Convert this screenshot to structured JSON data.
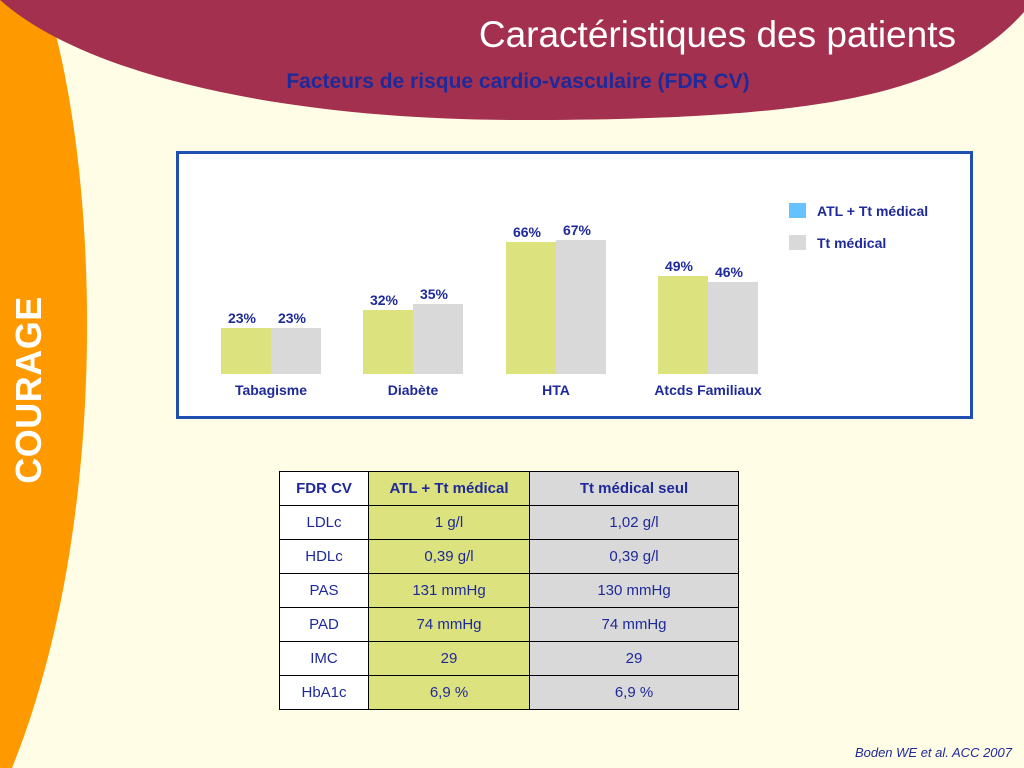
{
  "header": {
    "title": "Caractéristiques des patients",
    "subtitle": "Facteurs de risque cardio-vasculaire (FDR CV)"
  },
  "side_label": "COURAGE",
  "colors": {
    "banner": "#A3304F",
    "sidebar": "#FF9900",
    "background": "#FFFDE5",
    "series1": "#DCE27E",
    "series2": "#D9D9D9",
    "legend1": "#66C2FF",
    "text": "#1F2A9A",
    "border": "#1F4FB0"
  },
  "chart_data": {
    "type": "bar",
    "title": "",
    "xlabel": "",
    "ylabel": "",
    "ylim": [
      0,
      80
    ],
    "grid": false,
    "legend": "right",
    "categories": [
      "Tabagisme",
      "Diabète",
      "HTA",
      "Atcds Familiaux"
    ],
    "series": [
      {
        "name": "ATL + Tt médical",
        "values": [
          23,
          32,
          66,
          49
        ],
        "labels": [
          "23%",
          "32%",
          "66%",
          "49%"
        ]
      },
      {
        "name": "Tt médical",
        "values": [
          23,
          35,
          67,
          46
        ],
        "labels": [
          "23%",
          "35%",
          "67%",
          "46%"
        ]
      }
    ]
  },
  "table": {
    "headers": [
      "FDR CV",
      "ATL + Tt médical",
      "Tt médical seul"
    ],
    "rows": [
      [
        "LDLc",
        "1 g/l",
        "1,02 g/l"
      ],
      [
        "HDLc",
        "0,39 g/l",
        "0,39 g/l"
      ],
      [
        "PAS",
        "131 mmHg",
        "130 mmHg"
      ],
      [
        "PAD",
        "74 mmHg",
        "74 mmHg"
      ],
      [
        "IMC",
        "29",
        "29"
      ],
      [
        "HbA1c",
        "6,9 %",
        "6,9 %"
      ]
    ]
  },
  "citation": "Boden WE et al. ACC 2007"
}
